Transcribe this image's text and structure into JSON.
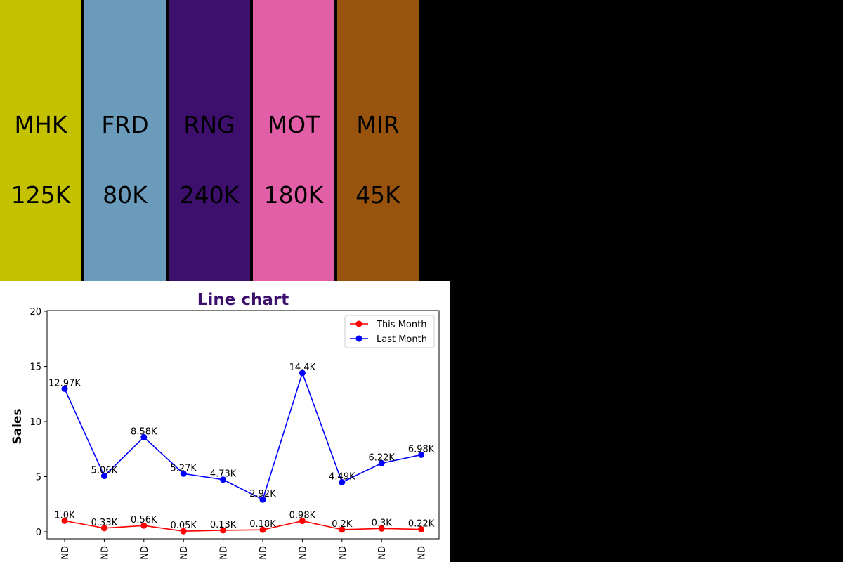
{
  "tiles": [
    {
      "code": "MHK",
      "value": "125K",
      "color": "#c4c100"
    },
    {
      "code": "FRD",
      "value": "80K",
      "color": "#6a9bbb"
    },
    {
      "code": "RNG",
      "value": "240K",
      "color": "#3c106c"
    },
    {
      "code": "MOT",
      "value": "180K",
      "color": "#e25fa8"
    },
    {
      "code": "MIR",
      "value": "45K",
      "color": "#98540e"
    }
  ],
  "chart_data": {
    "type": "line",
    "title": "Line chart",
    "title_color": "#3c106c",
    "ylabel": "Sales",
    "xlabel": "",
    "ylim": [
      0,
      20
    ],
    "yticks": [
      0,
      5,
      10,
      15,
      20
    ],
    "categories": [
      "ND",
      "ND",
      "ND",
      "ND",
      "ND",
      "ND",
      "ND",
      "ND",
      "ND",
      "ND"
    ],
    "legend_position": "top-right",
    "grid": false,
    "series": [
      {
        "name": "This Month",
        "color": "#ff0000",
        "values": [
          1.0,
          0.33,
          0.56,
          0.05,
          0.13,
          0.18,
          0.98,
          0.2,
          0.3,
          0.22
        ],
        "labels": [
          "1.0K",
          "0.33K",
          "0.56K",
          "0.05K",
          "0.13K",
          "0.18K",
          "0.98K",
          "0.2K",
          "0.3K",
          "0.22K"
        ]
      },
      {
        "name": "Last Month",
        "color": "#0000ff",
        "values": [
          12.97,
          5.06,
          8.58,
          5.27,
          4.73,
          2.92,
          14.4,
          4.49,
          6.22,
          6.98
        ],
        "labels": [
          "12.97K",
          "5.06K",
          "8.58K",
          "5.27K",
          "4.73K",
          "2.92K",
          "14.4K",
          "4.49K",
          "6.22K",
          "6.98K"
        ]
      }
    ]
  }
}
